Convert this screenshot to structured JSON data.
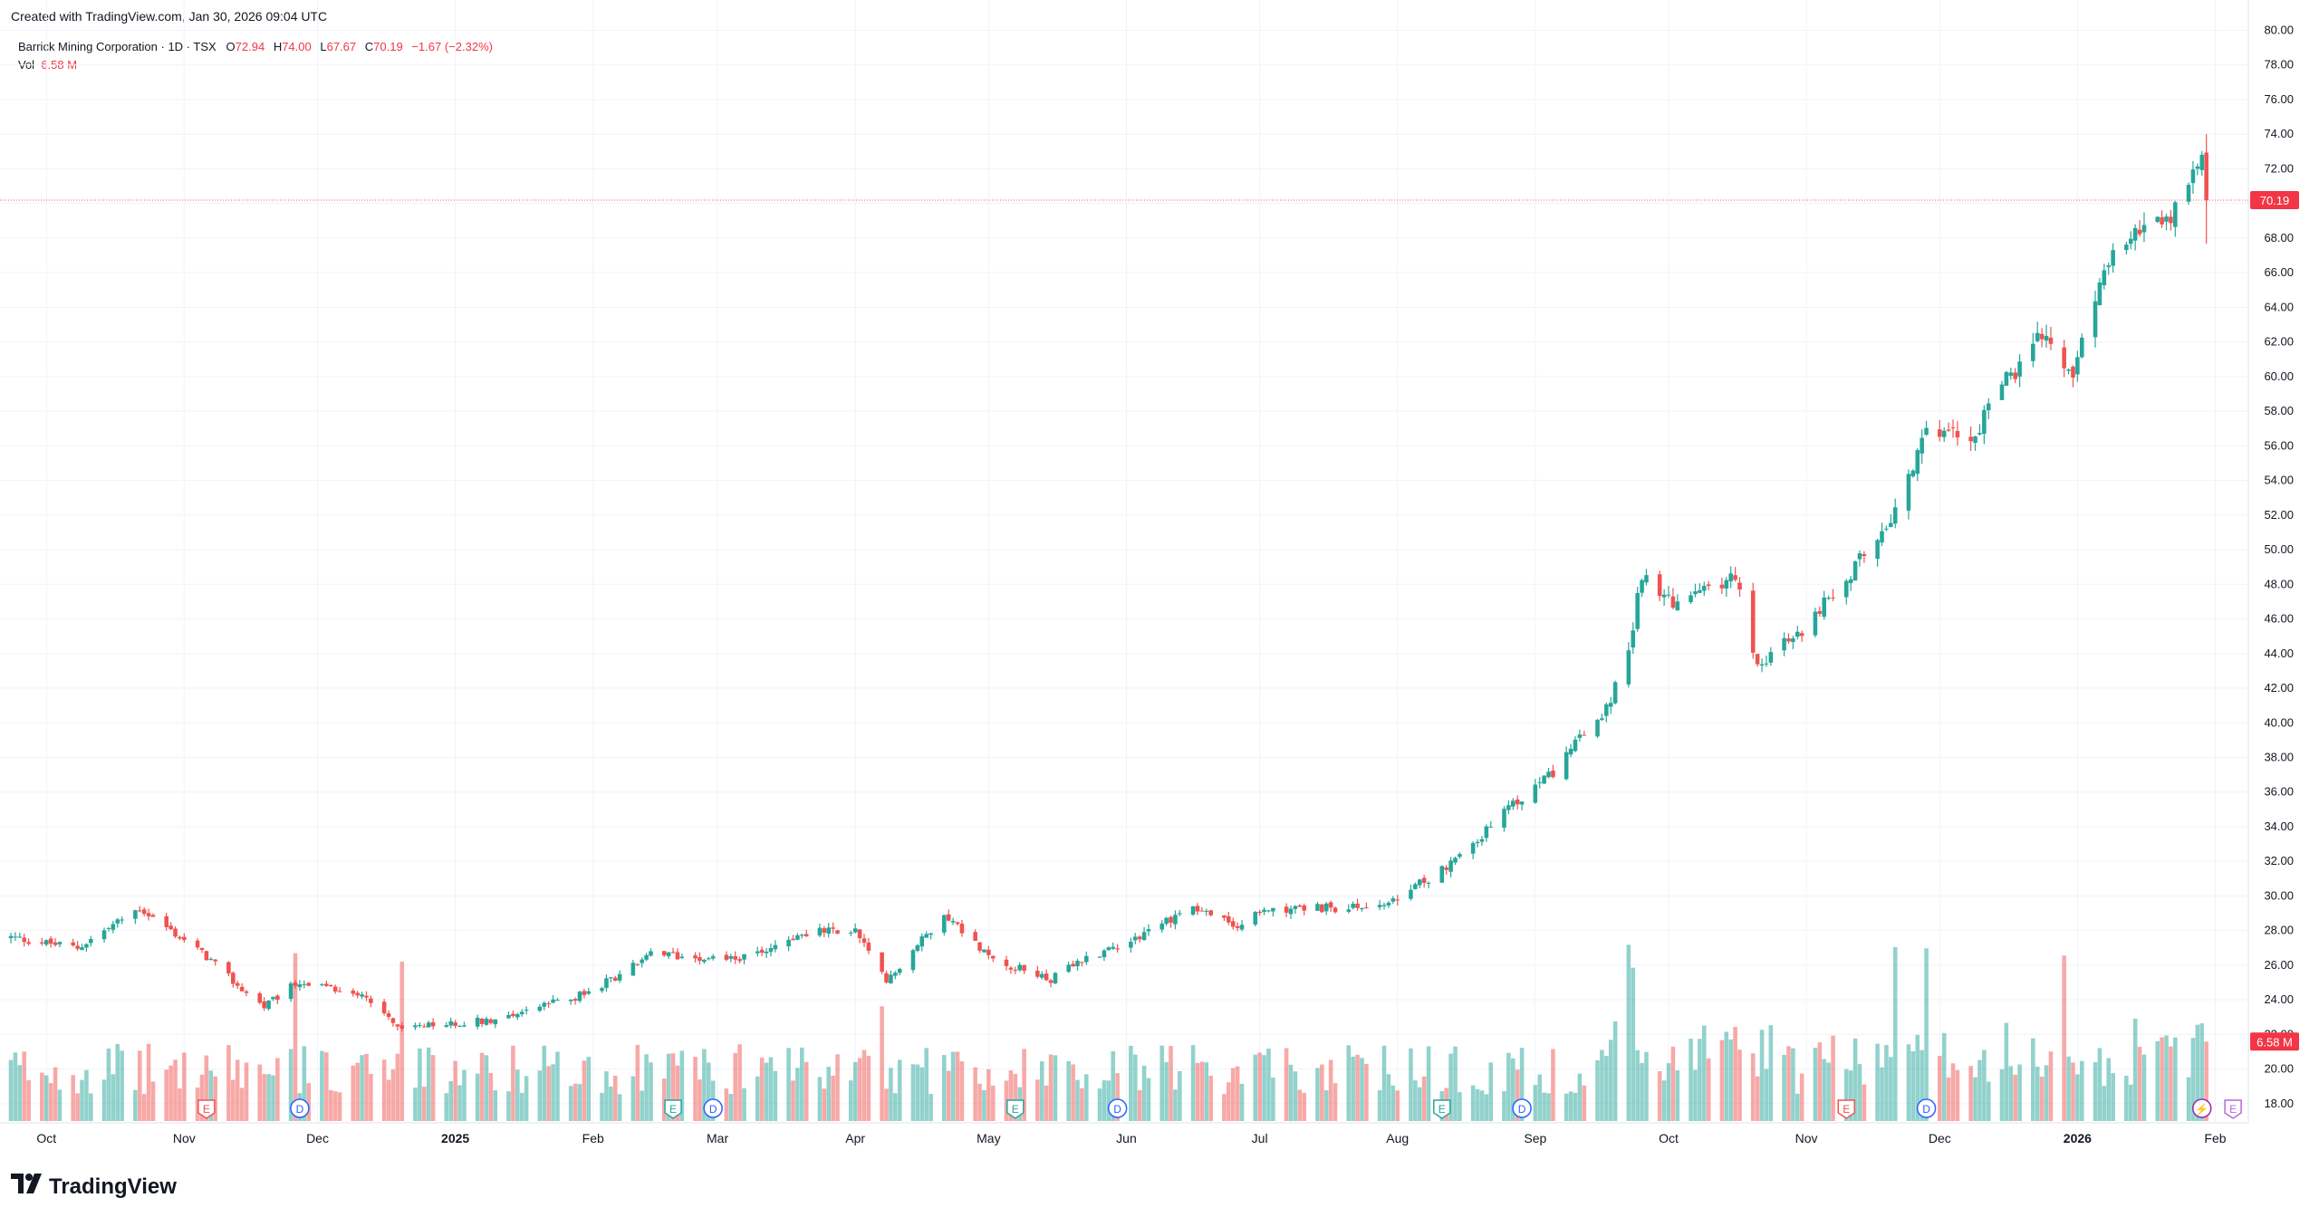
{
  "header": {
    "created": "Created with TradingView.com, Jan 30, 2026 09:04 UTC"
  },
  "legend": {
    "symbol": "Barrick Mining Corporation · 1D · TSX",
    "o_label": "O",
    "o_value": "72.94",
    "h_label": "H",
    "h_value": "74.00",
    "l_label": "L",
    "l_value": "67.67",
    "c_label": "C",
    "c_value": "70.19",
    "change": "−1.67 (−2.32%)",
    "vol_label": "Vol",
    "vol_value": "6.58 M"
  },
  "brand": {
    "name": "TradingView",
    "logo_icon": "tradingview-logo-icon"
  },
  "colors": {
    "up": "#26a69a",
    "down": "#ef5350",
    "vol_up": "#26a69a",
    "vol_down": "#ef5350",
    "grid": "#f0f3fa",
    "axis_text": "#131722",
    "price_line": "#f23645",
    "divider": "#e0e3eb"
  },
  "markers": [
    {
      "type": "earnings",
      "label": "E",
      "date": "2024-11-06",
      "color": "#ef5350"
    },
    {
      "type": "dividend",
      "label": "D",
      "date": "2024-11-27",
      "color": "#2962ff"
    },
    {
      "type": "earnings",
      "label": "E",
      "date": "2025-02-19",
      "color": "#26a69a"
    },
    {
      "type": "dividend",
      "label": "D",
      "date": "2025-02-28",
      "color": "#2962ff"
    },
    {
      "type": "earnings",
      "label": "E",
      "date": "2025-05-07",
      "color": "#26a69a"
    },
    {
      "type": "dividend",
      "label": "D",
      "date": "2025-05-30",
      "color": "#2962ff"
    },
    {
      "type": "earnings",
      "label": "E",
      "date": "2025-08-11",
      "color": "#26a69a"
    },
    {
      "type": "dividend",
      "label": "D",
      "date": "2025-08-29",
      "color": "#2962ff"
    },
    {
      "type": "earnings",
      "label": "E",
      "date": "2025-11-10",
      "color": "#ef5350"
    },
    {
      "type": "dividend",
      "label": "D",
      "date": "2025-11-28",
      "color": "#2962ff"
    },
    {
      "type": "split",
      "label": "⚡",
      "date": "2026-01-29",
      "color": "#9c27b0"
    },
    {
      "type": "earnings",
      "label": "E",
      "date": "2026-02-05",
      "color": "#b967db"
    }
  ],
  "chart_data": {
    "type": "candlestick",
    "symbol": "Barrick Mining Corporation",
    "interval": "1D",
    "exchange": "TSX",
    "x_range": [
      "2024-09-23",
      "2026-02-06"
    ],
    "x_ticks": [
      {
        "label": "Oct",
        "date": "2024-10-01"
      },
      {
        "label": "Nov",
        "date": "2024-11-01"
      },
      {
        "label": "Dec",
        "date": "2024-12-01"
      },
      {
        "label": "2025",
        "date": "2025-01-01",
        "bold": true
      },
      {
        "label": "Feb",
        "date": "2025-02-01"
      },
      {
        "label": "Mar",
        "date": "2025-03-01"
      },
      {
        "label": "Apr",
        "date": "2025-04-01"
      },
      {
        "label": "May",
        "date": "2025-05-01"
      },
      {
        "label": "Jun",
        "date": "2025-06-01"
      },
      {
        "label": "Jul",
        "date": "2025-07-01"
      },
      {
        "label": "Aug",
        "date": "2025-08-01"
      },
      {
        "label": "Sep",
        "date": "2025-09-01"
      },
      {
        "label": "Oct",
        "date": "2025-10-01"
      },
      {
        "label": "Nov",
        "date": "2025-11-01"
      },
      {
        "label": "Dec",
        "date": "2025-12-01"
      },
      {
        "label": "2026",
        "date": "2026-01-01",
        "bold": true
      },
      {
        "label": "Feb",
        "date": "2026-02-01"
      }
    ],
    "y_axis": {
      "min": 17.0,
      "max": 80.6,
      "step": 2,
      "tick_labels": [
        "18.00",
        "20.00",
        "22.00",
        "24.00",
        "26.00",
        "28.00",
        "30.00",
        "32.00",
        "34.00",
        "36.00",
        "38.00",
        "40.00",
        "42.00",
        "44.00",
        "46.00",
        "48.00",
        "50.00",
        "52.00",
        "54.00",
        "56.00",
        "58.00",
        "60.00",
        "62.00",
        "64.00",
        "66.00",
        "68.00",
        "70.00",
        "72.00",
        "74.00",
        "76.00",
        "78.00",
        "80.00"
      ]
    },
    "last_price": 70.19,
    "last_price_label": "70.19",
    "last_volume_label": "6.58 M",
    "grid": true,
    "price_anchors": [
      [
        "2024-09-23",
        27.6
      ],
      [
        "2024-10-08",
        27.0
      ],
      [
        "2024-10-22",
        29.3
      ],
      [
        "2024-11-06",
        26.5
      ],
      [
        "2024-11-13",
        24.8
      ],
      [
        "2024-11-19",
        23.6
      ],
      [
        "2024-11-26",
        24.9
      ],
      [
        "2024-12-11",
        24.4
      ],
      [
        "2024-12-20",
        22.3
      ],
      [
        "2025-01-10",
        22.9
      ],
      [
        "2025-01-31",
        24.4
      ],
      [
        "2025-02-14",
        26.6
      ],
      [
        "2025-03-07",
        26.4
      ],
      [
        "2025-03-21",
        27.9
      ],
      [
        "2025-04-01",
        28.0
      ],
      [
        "2025-04-08",
        25.0
      ],
      [
        "2025-04-21",
        29.0
      ],
      [
        "2025-05-02",
        26.3
      ],
      [
        "2025-05-15",
        25.2
      ],
      [
        "2025-05-23",
        26.4
      ],
      [
        "2025-06-03",
        27.6
      ],
      [
        "2025-06-16",
        29.4
      ],
      [
        "2025-06-26",
        28.2
      ],
      [
        "2025-07-03",
        29.3
      ],
      [
        "2025-07-22",
        29.3
      ],
      [
        "2025-07-31",
        29.6
      ],
      [
        "2025-08-15",
        32.3
      ],
      [
        "2025-08-27",
        35.2
      ],
      [
        "2025-09-05",
        37.2
      ],
      [
        "2025-09-17",
        40.8
      ],
      [
        "2025-09-22",
        44.0
      ],
      [
        "2025-09-25",
        48.6
      ],
      [
        "2025-10-03",
        46.8
      ],
      [
        "2025-10-16",
        48.5
      ],
      [
        "2025-10-21",
        43.4
      ],
      [
        "2025-10-30",
        45.0
      ],
      [
        "2025-11-11",
        48.6
      ],
      [
        "2025-11-17",
        50.8
      ],
      [
        "2025-11-21",
        52.4
      ],
      [
        "2025-11-28",
        56.8
      ],
      [
        "2025-12-09",
        56.6
      ],
      [
        "2025-12-15",
        59.8
      ],
      [
        "2025-12-19",
        60.6
      ],
      [
        "2025-12-24",
        62.3
      ],
      [
        "2025-12-31",
        60.0
      ],
      [
        "2026-01-07",
        66.0
      ],
      [
        "2026-01-13",
        68.6
      ],
      [
        "2026-01-21",
        68.7
      ],
      [
        "2026-01-27",
        71.5
      ],
      [
        "2026-01-29",
        72.9
      ]
    ],
    "final_candle": {
      "date": "2026-01-30",
      "open": 72.94,
      "high": 74.0,
      "low": 67.67,
      "close": 70.19,
      "volume_millions": 6.58
    },
    "volume_millions_range": [
      1.5,
      15.0
    ],
    "volume_spikes": [
      {
        "date": "2024-11-26",
        "volume_millions": 13.9
      },
      {
        "date": "2024-12-20",
        "volume_millions": 13.2
      },
      {
        "date": "2025-04-07",
        "volume_millions": 9.5
      },
      {
        "date": "2025-09-22",
        "volume_millions": 14.6
      },
      {
        "date": "2025-09-23",
        "volume_millions": 12.7
      },
      {
        "date": "2025-11-21",
        "volume_millions": 14.4
      },
      {
        "date": "2025-11-28",
        "volume_millions": 14.3
      },
      {
        "date": "2025-12-29",
        "volume_millions": 13.7
      }
    ]
  }
}
